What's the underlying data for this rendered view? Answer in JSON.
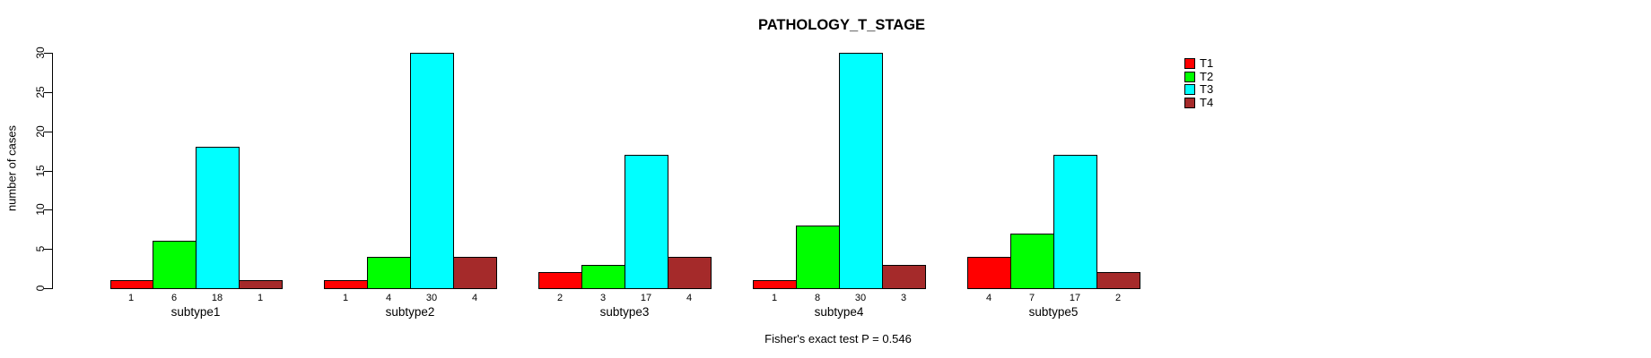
{
  "chart_data": {
    "type": "bar",
    "title": "PATHOLOGY_T_STAGE",
    "ylabel": "number of cases",
    "xlabel": "",
    "annotation": "Fisher's exact test P = 0.546",
    "categories": [
      "subtype1",
      "subtype2",
      "subtype3",
      "subtype4",
      "subtype5"
    ],
    "series": [
      {
        "name": "T1",
        "color": "#FF0000",
        "values": [
          1,
          1,
          2,
          1,
          4
        ]
      },
      {
        "name": "T2",
        "color": "#00FF00",
        "values": [
          6,
          4,
          3,
          8,
          7
        ]
      },
      {
        "name": "T3",
        "color": "#00FFFF",
        "values": [
          18,
          30,
          17,
          30,
          17
        ]
      },
      {
        "name": "T4",
        "color": "#A52A2A",
        "values": [
          1,
          4,
          4,
          3,
          2
        ]
      }
    ],
    "ylim": [
      0,
      30
    ],
    "yticks": [
      0,
      5,
      10,
      15,
      20,
      25,
      30
    ],
    "grid": false,
    "legend_position": "right",
    "bar_value_labels_shown": true,
    "axis_color": "#000000",
    "background_color": "#FFFFFF"
  }
}
